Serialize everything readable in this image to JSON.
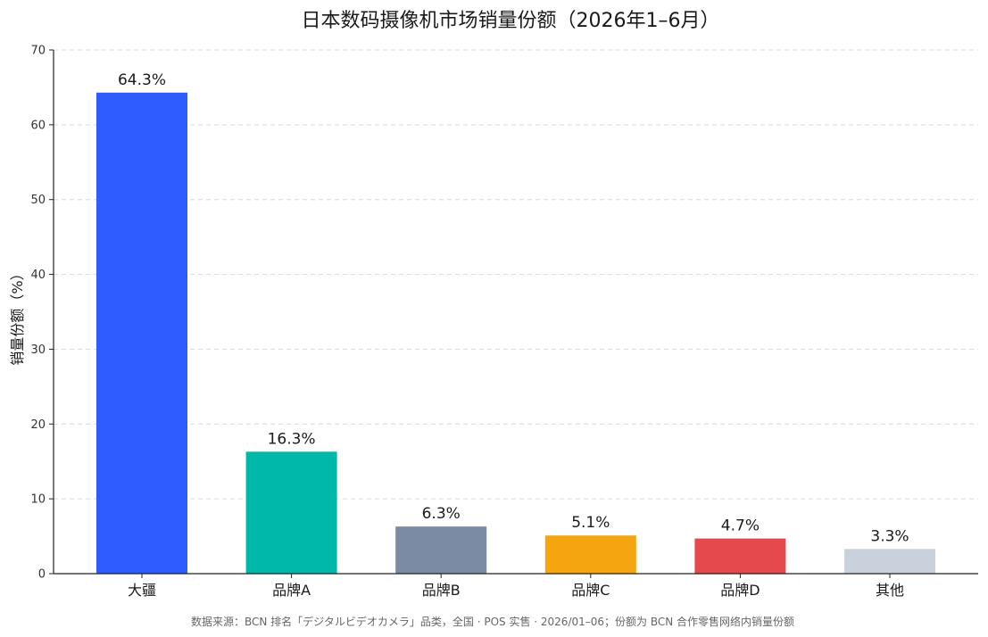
{
  "chart_data": {
    "type": "bar",
    "title": "日本数码摄像机市场销量份额（2026年1–6月）",
    "xlabel": "",
    "ylabel": "销量份额（%）",
    "ylim": [
      0,
      70
    ],
    "yticks": [
      0,
      10,
      20,
      30,
      40,
      50,
      60,
      70
    ],
    "grid": true,
    "categories": [
      "大疆",
      "品牌A",
      "品牌B",
      "品牌C",
      "品牌D",
      "其他"
    ],
    "values": [
      64.3,
      16.3,
      6.3,
      5.1,
      4.7,
      3.3
    ],
    "value_labels": [
      "64.3%",
      "16.3%",
      "6.3%",
      "5.1%",
      "4.7%",
      "3.3%"
    ],
    "colors": [
      "#2f5cff",
      "#00b8a9",
      "#7a8ba3",
      "#f5a50f",
      "#e5484d",
      "#c8d1dc"
    ],
    "footnote": "数据来源：BCN 排名「デジタルビデオカメラ」品类，全国 · POS 实售 · 2026/01–06；份额为 BCN 合作零售网络内销量份额"
  }
}
